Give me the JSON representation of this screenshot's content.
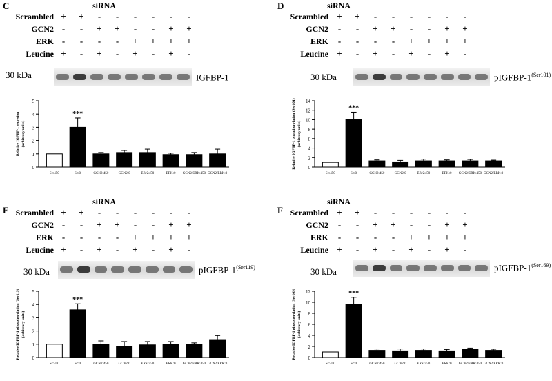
{
  "panels": [
    {
      "letter": "C",
      "blot_label": "IGFBP-1",
      "blot_sup": "",
      "blot_kda": "30 kDa"
    },
    {
      "letter": "D",
      "blot_label": "pIGFBP-1",
      "blot_sup": "(Ser101)",
      "blot_kda": "30 kDa"
    },
    {
      "letter": "E",
      "blot_label": "pIGFBP-1",
      "blot_sup": "(Ser119)",
      "blot_kda": "30 kDa"
    },
    {
      "letter": "F",
      "blot_label": "pIGFBP-1",
      "blot_sup": "(Ser169)",
      "blot_kda": "30 kDa"
    }
  ],
  "condition_table": {
    "header": "siRNA",
    "rows": [
      {
        "label": "Scrambled",
        "signs": [
          "+",
          "+",
          "-",
          "-",
          "-",
          "-",
          "-",
          "-"
        ]
      },
      {
        "label": "GCN2",
        "signs": [
          "-",
          "-",
          "+",
          "+",
          "-",
          "-",
          "+",
          "+"
        ]
      },
      {
        "label": "ERK",
        "signs": [
          "-",
          "-",
          "-",
          "-",
          "+",
          "+",
          "+",
          "+"
        ]
      },
      {
        "label": "Leucine",
        "signs": [
          "+",
          "-",
          "+",
          "-",
          "+",
          "-",
          "+",
          "-"
        ]
      }
    ]
  },
  "chart_data": [
    {
      "type": "bar",
      "panel": "C",
      "categories": [
        "Sc:450",
        "Sc:0",
        "GCN2:450",
        "GCN2:0",
        "ERK:450",
        "ERK:0",
        "GCN2/ERK:450",
        "GCN2/ERK:0"
      ],
      "values": [
        1.0,
        3.0,
        1.0,
        1.1,
        1.1,
        0.95,
        0.95,
        1.0
      ],
      "errors": [
        0,
        0.7,
        0.1,
        0.15,
        0.25,
        0.1,
        0.15,
        0.35
      ],
      "ylabel": "Relative IGFBP-1 secretion\n(arbitrary units)",
      "ylim": [
        0,
        5
      ],
      "yticks": [
        0,
        1,
        2,
        3,
        4,
        5
      ],
      "annotation": "***",
      "annotated_index": 1
    },
    {
      "type": "bar",
      "panel": "D",
      "categories": [
        "Sc:450",
        "Sc:0",
        "GCN2:450",
        "GCN2:0",
        "ERK:450",
        "ERK:0",
        "GCN2/ERK:450",
        "GCN2/ERK:0"
      ],
      "values": [
        1.0,
        10.0,
        1.3,
        1.1,
        1.3,
        1.3,
        1.3,
        1.3
      ],
      "errors": [
        0,
        1.6,
        0.2,
        0.3,
        0.35,
        0.2,
        0.3,
        0.15
      ],
      "ylabel": "Relative IGFBP-1 phosphorylation (Ser101)\n(arbitrary units)",
      "ylim": [
        0,
        14
      ],
      "yticks": [
        0,
        2,
        4,
        6,
        8,
        10,
        12,
        14
      ],
      "annotation": "***",
      "annotated_index": 1
    },
    {
      "type": "bar",
      "panel": "E",
      "categories": [
        "Sc:450",
        "Sc:0",
        "GCN2:450",
        "GCN2:0",
        "ERK:450",
        "ERK:0",
        "GCN2/ERK:450",
        "GCN2/ERK:0"
      ],
      "values": [
        1.0,
        3.6,
        1.0,
        0.85,
        0.95,
        1.0,
        1.0,
        1.35
      ],
      "errors": [
        0,
        0.45,
        0.25,
        0.35,
        0.25,
        0.2,
        0.1,
        0.3
      ],
      "ylabel": "Relative IGFBP-1 phosphorylation (Ser119)\n(arbitrary units)",
      "ylim": [
        0,
        5
      ],
      "yticks": [
        0,
        1,
        2,
        3,
        4,
        5
      ],
      "annotation": "***",
      "annotated_index": 1
    },
    {
      "type": "bar",
      "panel": "F",
      "categories": [
        "Sc:450",
        "Sc:0",
        "GCN2:450",
        "GCN2:0",
        "ERK:450",
        "ERK:0",
        "GCN2/ERK:450",
        "GCN2/ERK:0"
      ],
      "values": [
        1.0,
        9.6,
        1.3,
        1.2,
        1.3,
        1.2,
        1.5,
        1.3
      ],
      "errors": [
        0,
        1.3,
        0.25,
        0.35,
        0.25,
        0.25,
        0.2,
        0.2
      ],
      "ylabel": "Relative IGFBP-1 phosphorylation (Ser169)\n(arbitrary units)",
      "ylim": [
        0,
        12
      ],
      "yticks": [
        0,
        2,
        4,
        6,
        8,
        10,
        12
      ],
      "annotation": "***",
      "annotated_index": 1
    }
  ],
  "colors": {
    "first_bar": "#ffffff",
    "bars": "#000000",
    "axis": "#000000"
  }
}
